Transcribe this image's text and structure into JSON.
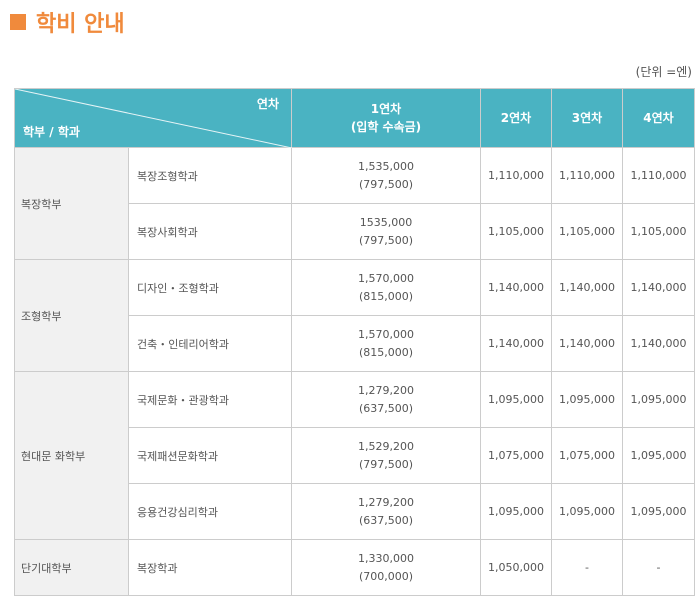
{
  "title": "학비 안내",
  "unit": "(단위 =엔)",
  "header": {
    "diag_top": "연차",
    "diag_bottom": "학부 / 학과",
    "year1": "1연차",
    "year1_note": "(입학 수속금)",
    "year2": "2연차",
    "year3": "3연차",
    "year4": "4연차"
  },
  "groups": [
    {
      "faculty": "복장학부",
      "rows": [
        {
          "department": "복장조형학과",
          "year1": "1,535,000",
          "year1_note": "(797,500)",
          "year2": "1,110,000",
          "year3": "1,110,000",
          "year4": "1,110,000"
        },
        {
          "department": "복장사회학과",
          "year1": "1535,000",
          "year1_note": "(797,500)",
          "year2": "1,105,000",
          "year3": "1,105,000",
          "year4": "1,105,000"
        }
      ]
    },
    {
      "faculty": "조형학부",
      "rows": [
        {
          "department": "디자인・조형학과",
          "year1": "1,570,000",
          "year1_note": "(815,000)",
          "year2": "1,140,000",
          "year3": "1,140,000",
          "year4": "1,140,000"
        },
        {
          "department": "건축・인테리어학과",
          "year1": "1,570,000",
          "year1_note": "(815,000)",
          "year2": "1,140,000",
          "year3": "1,140,000",
          "year4": "1,140,000"
        }
      ]
    },
    {
      "faculty": "현대문 화학부",
      "rows": [
        {
          "department": "국제문화・관광학과",
          "year1": "1,279,200",
          "year1_note": "(637,500)",
          "year2": "1,095,000",
          "year3": "1,095,000",
          "year4": "1,095,000"
        },
        {
          "department": "국제패션문화학과",
          "year1": "1,529,200",
          "year1_note": "(797,500)",
          "year2": "1,075,000",
          "year3": "1,075,000",
          "year4": "1,095,000"
        },
        {
          "department": "응용건강심리학과",
          "year1": "1,279,200",
          "year1_note": "(637,500)",
          "year2": "1,095,000",
          "year3": "1,095,000",
          "year4": "1,095,000"
        }
      ]
    },
    {
      "faculty": "단기대학부",
      "rows": [
        {
          "department": "복장학과",
          "year1": "1,330,000",
          "year1_note": "(700,000)",
          "year2": "1,050,000",
          "year3": "-",
          "year4": "-"
        }
      ]
    }
  ]
}
